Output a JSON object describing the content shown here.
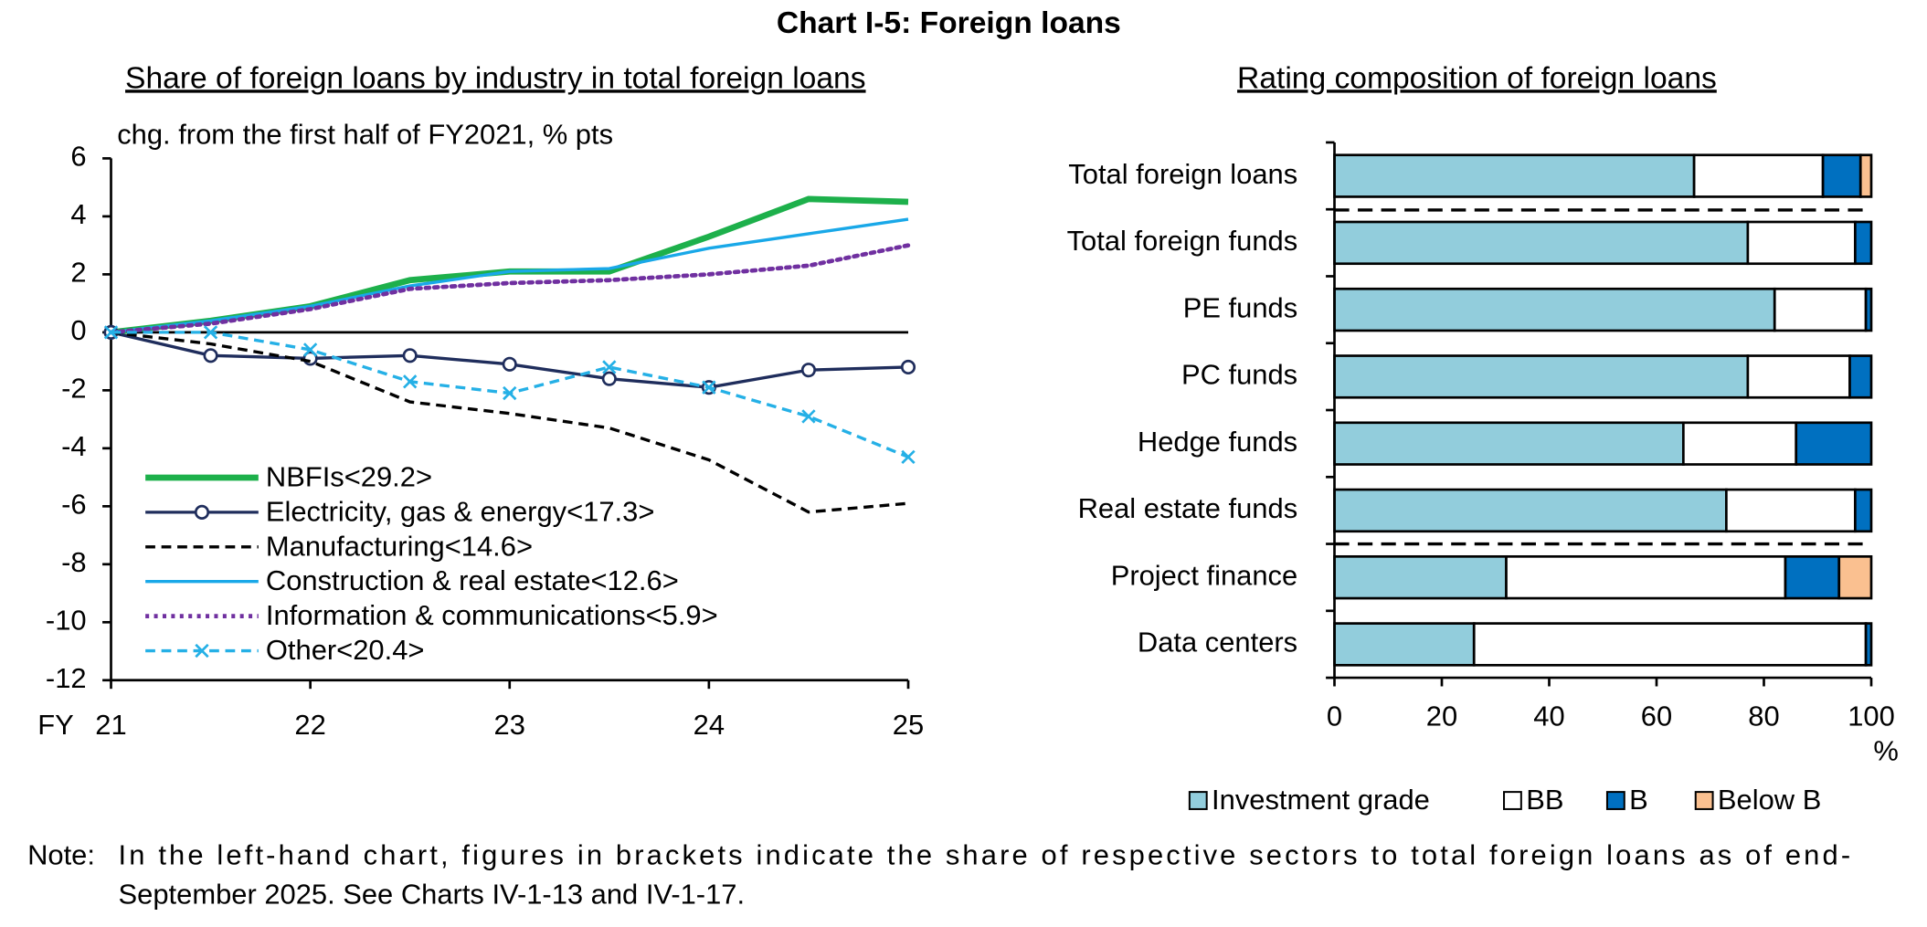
{
  "title": "Chart I-5: Foreign loans",
  "note": {
    "label": "Note:",
    "lines": [
      "In the left-hand chart, figures in brackets indicate the share of respective sectors to total foreign loans as of end-",
      "September 2025. See Charts IV-1-13 and IV-1-17."
    ]
  },
  "chart_data": [
    {
      "type": "line",
      "title": "Share of foreign loans by industry in total foreign loans",
      "ylabel": "chg. from the first half of FY2021, % pts",
      "xlabel": "FY",
      "x": [
        21,
        21.5,
        22,
        22.5,
        23,
        23.5,
        24,
        24.5,
        25
      ],
      "xlim": [
        21,
        25
      ],
      "xticks": [
        21,
        22,
        23,
        24,
        25
      ],
      "ylim": [
        -12,
        6
      ],
      "yticks": [
        -12,
        -10,
        -8,
        -6,
        -4,
        -2,
        0,
        2,
        4,
        6
      ],
      "series": [
        {
          "name": "NBFIs<29.2>",
          "color": "#1db04b",
          "line_width": 5,
          "line_style": "solid",
          "marker": "none",
          "values": [
            0,
            0.4,
            0.9,
            1.8,
            2.1,
            2.1,
            3.3,
            4.6,
            4.5
          ]
        },
        {
          "name": "Electricity, gas & energy<17.3>",
          "color": "#1f2d5c",
          "line_width": 2.5,
          "line_style": "solid",
          "marker": "circle",
          "values": [
            0,
            -0.8,
            -0.9,
            -0.8,
            -1.1,
            -1.6,
            -1.9,
            -1.3,
            -1.2
          ]
        },
        {
          "name": "Manufacturing<14.6>",
          "color": "#000000",
          "line_width": 2.5,
          "line_style": "dashed",
          "marker": "none",
          "values": [
            0,
            -0.4,
            -1.0,
            -2.4,
            -2.8,
            -3.3,
            -4.4,
            -6.2,
            -5.9
          ]
        },
        {
          "name": "Construction & real estate<12.6>",
          "color": "#19a8e8",
          "line_width": 2.5,
          "line_style": "solid",
          "marker": "none",
          "values": [
            0,
            0.4,
            0.9,
            1.6,
            2.1,
            2.2,
            2.9,
            3.4,
            3.9
          ]
        },
        {
          "name": "Information & communications<5.9>",
          "color": "#7030a0",
          "line_width": 3.5,
          "line_style": "dotted",
          "marker": "none",
          "values": [
            0,
            0.3,
            0.8,
            1.5,
            1.7,
            1.8,
            2.0,
            2.3,
            3.0
          ]
        },
        {
          "name": "Other<20.4>",
          "color": "#25b0e6",
          "line_width": 2.5,
          "line_style": "dashed",
          "marker": "x",
          "values": [
            0,
            0.0,
            -0.6,
            -1.7,
            -2.1,
            -1.2,
            -1.9,
            -2.9,
            -4.3
          ]
        }
      ]
    },
    {
      "type": "bar",
      "orientation": "horizontal",
      "stacked": true,
      "title": "Rating composition of foreign loans",
      "xlabel": "%",
      "categories": [
        "Total foreign loans",
        "Total foreign funds",
        "PE funds",
        "PC funds",
        "Hedge funds",
        "Real estate funds",
        "Project finance",
        "Data centers"
      ],
      "xlim": [
        0,
        100
      ],
      "xticks": [
        0,
        20,
        40,
        60,
        80,
        100
      ],
      "series": [
        {
          "name": "Investment grade",
          "color": "#92cddc",
          "values": [
            67,
            77,
            82,
            77,
            65,
            73,
            32,
            26
          ]
        },
        {
          "name": "BB",
          "color": "#ffffff",
          "values": [
            24,
            20,
            17,
            19,
            21,
            24,
            52,
            73
          ]
        },
        {
          "name": "B",
          "color": "#0070c0",
          "values": [
            7,
            3,
            1,
            4,
            14,
            3,
            10,
            1
          ]
        },
        {
          "name": "Below B",
          "color": "#fac090",
          "values": [
            2,
            0,
            0,
            0,
            0,
            0,
            6,
            0
          ]
        }
      ]
    }
  ]
}
